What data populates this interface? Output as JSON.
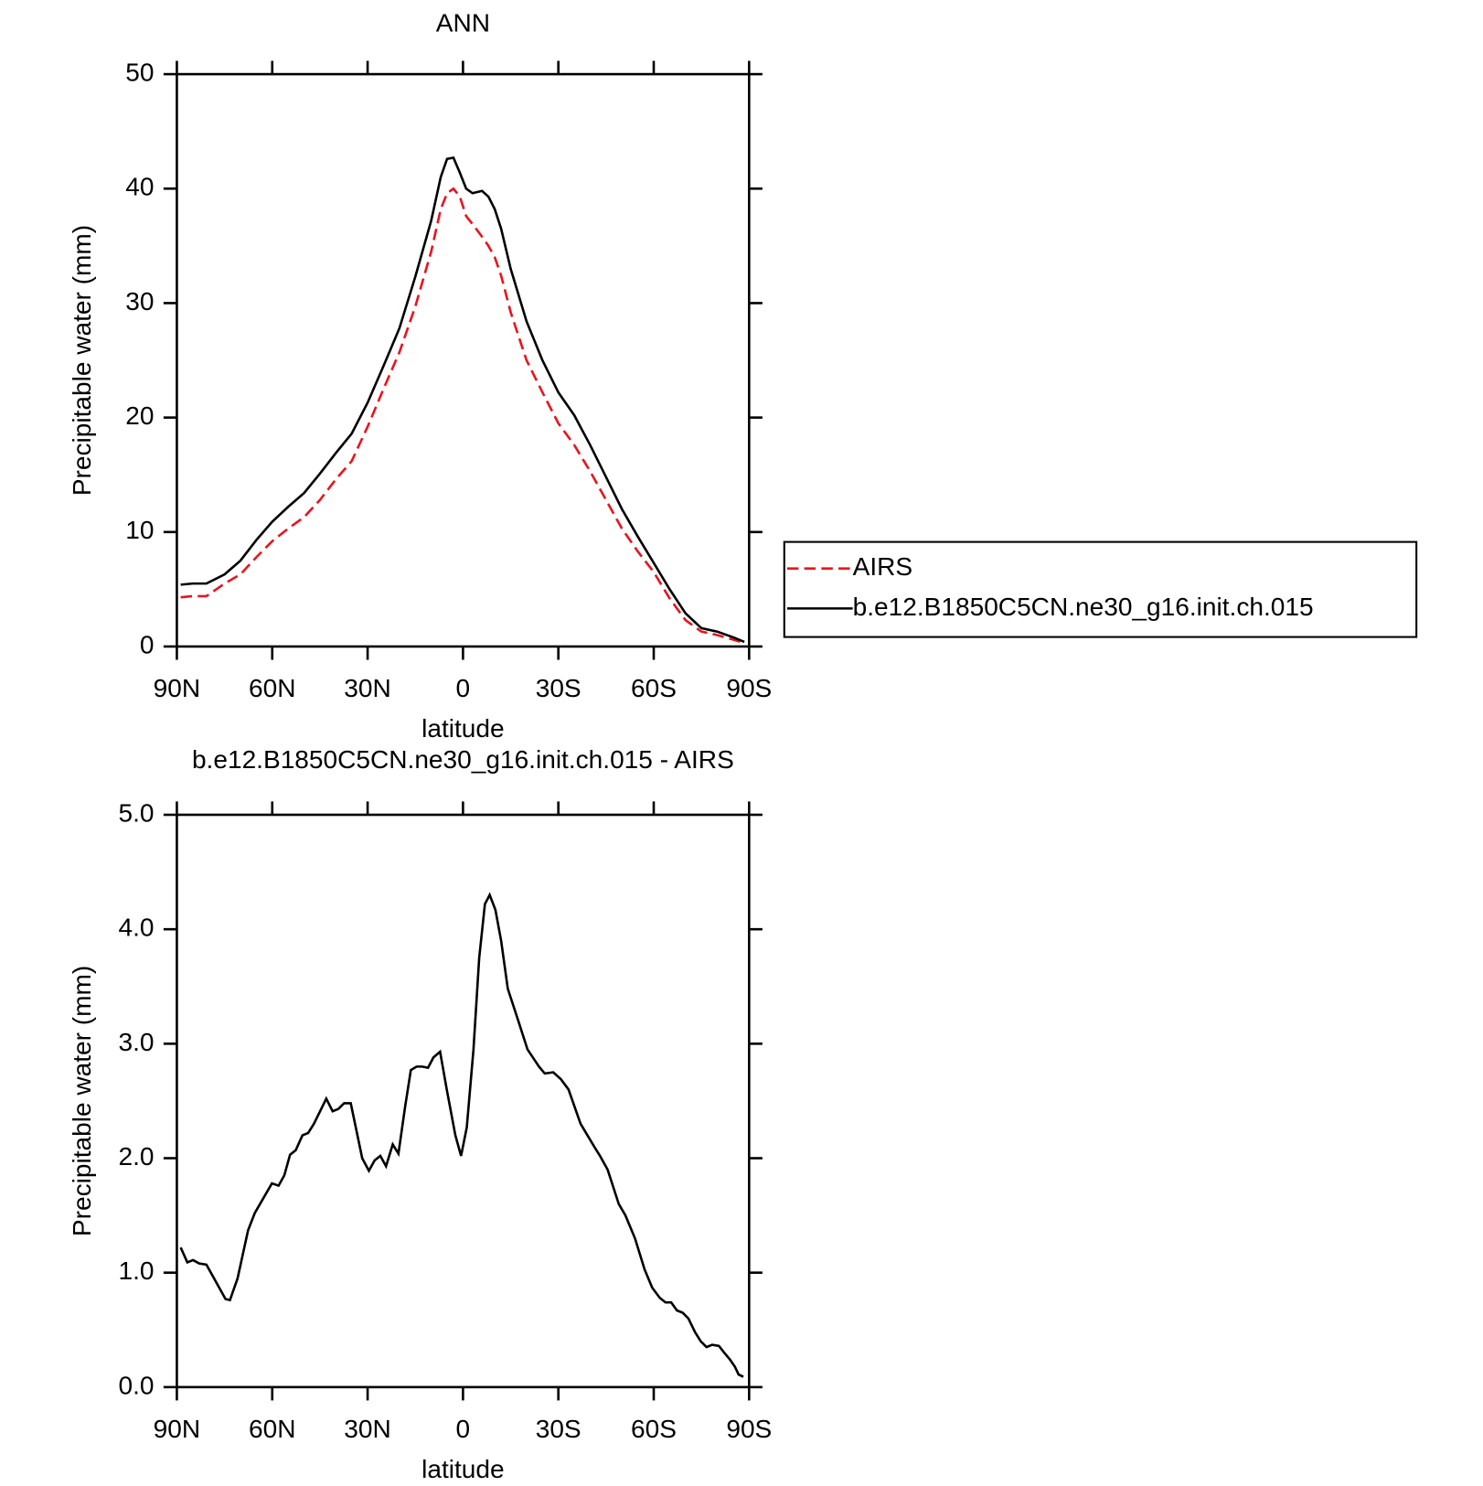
{
  "chart_data": [
    {
      "type": "line",
      "title": "ANN",
      "xlabel": "latitude",
      "ylabel": "Precipitable water (mm)",
      "x": [
        88.8,
        85,
        80.7,
        75,
        70,
        65,
        60,
        55,
        50,
        45,
        40,
        35,
        30,
        25,
        20,
        15,
        10,
        7,
        5,
        3,
        1,
        -1,
        -3,
        -6,
        -8,
        -10,
        -12,
        -15,
        -20,
        -25,
        -30,
        -35,
        -40,
        -45,
        -50,
        -55,
        -60,
        -65,
        -70,
        -75,
        -80,
        -85,
        -88.5
      ],
      "series": [
        {
          "name": "AIRS",
          "color": "#e8141e",
          "linestyle": "dashed",
          "values": [
            4.3,
            4.4,
            4.4,
            5.5,
            6.3,
            7.8,
            9.2,
            10.3,
            11.3,
            12.8,
            14.6,
            16.2,
            19.2,
            22.5,
            25.7,
            29.7,
            34.5,
            38.2,
            39.6,
            40.0,
            39.3,
            37.6,
            36.9,
            35.8,
            35.0,
            34.0,
            32.4,
            29.2,
            25.0,
            22.2,
            19.5,
            17.6,
            15.3,
            12.8,
            10.3,
            8.3,
            6.5,
            4.2,
            2.3,
            1.3,
            1.0,
            0.6,
            0.3
          ]
        },
        {
          "name": "b.e12.B1850C5CN.ne30_g16.init.ch.015",
          "color": "#000000",
          "linestyle": "solid",
          "values": [
            5.4,
            5.5,
            5.5,
            6.3,
            7.5,
            9.3,
            10.9,
            12.2,
            13.4,
            15.1,
            16.9,
            18.6,
            21.3,
            24.5,
            27.8,
            32.3,
            37.2,
            41.0,
            42.6,
            42.7,
            41.4,
            40.0,
            39.6,
            39.8,
            39.3,
            38.2,
            36.5,
            33.0,
            28.4,
            25.0,
            22.2,
            20.2,
            17.6,
            14.8,
            12.0,
            9.6,
            7.3,
            5.0,
            2.9,
            1.6,
            1.3,
            0.8,
            0.4
          ]
        }
      ],
      "xlim": [
        90,
        -90
      ],
      "ylim": [
        0,
        50
      ],
      "xticks": [
        {
          "value": 90,
          "label": "90N"
        },
        {
          "value": 60,
          "label": "60N"
        },
        {
          "value": 30,
          "label": "30N"
        },
        0,
        {
          "value": -30,
          "label": "30S"
        },
        {
          "value": -60,
          "label": "60S"
        },
        {
          "value": -90,
          "label": "90S"
        }
      ],
      "yticks": [
        0,
        10,
        20,
        30,
        40,
        50
      ],
      "legend": "right"
    },
    {
      "type": "line",
      "title": "b.e12.B1850C5CN.ne30_g16.init.ch.015 - AIRS",
      "xlabel": "latitude",
      "ylabel": "Precipitable water (mm)",
      "x": [
        88.8,
        86.7,
        84.9,
        83,
        80.7,
        74.7,
        73.3,
        70.9,
        67.6,
        65.5,
        60.1,
        58,
        56.2,
        54.4,
        52.6,
        50.5,
        48.7,
        46.9,
        43,
        41,
        39.2,
        37.4,
        35.3,
        31.7,
        29.6,
        27.8,
        26,
        24.2,
        22.1,
        20.3,
        18.2,
        16.4,
        14.6,
        12.8,
        11,
        9.3,
        7.2,
        5.1,
        2.4,
        0.6,
        -1.2,
        -3.3,
        -5.1,
        -6.9,
        -8.4,
        -10.2,
        -12,
        -14.1,
        -17.4,
        -20.3,
        -23.9,
        -25.7,
        -28.4,
        -30.8,
        -33.2,
        -37,
        -41.3,
        -43.1,
        -45.5,
        -49,
        -51.1,
        -54.1,
        -57.1,
        -59.5,
        -61.9,
        -63.7,
        -65.5,
        -67.3,
        -69.1,
        -70.9,
        -73,
        -74.8,
        -76.6,
        -78.4,
        -80.5,
        -82.2,
        -84,
        -85.5,
        -86.7,
        -88.2
      ],
      "series": [
        {
          "name": "b.e12.B1850C5CN.ne30_g16.init.ch.015 - AIRS",
          "color": "#000000",
          "linestyle": "solid",
          "values": [
            1.22,
            1.09,
            1.11,
            1.08,
            1.07,
            0.77,
            0.76,
            0.95,
            1.37,
            1.52,
            1.78,
            1.76,
            1.85,
            2.03,
            2.07,
            2.2,
            2.22,
            2.3,
            2.52,
            2.41,
            2.43,
            2.48,
            2.48,
            2.0,
            1.89,
            1.98,
            2.02,
            1.93,
            2.12,
            2.04,
            2.45,
            2.77,
            2.8,
            2.8,
            2.79,
            2.88,
            2.93,
            2.6,
            2.2,
            2.02,
            2.27,
            2.95,
            3.75,
            4.22,
            4.3,
            4.17,
            3.9,
            3.48,
            3.2,
            2.95,
            2.8,
            2.74,
            2.75,
            2.69,
            2.6,
            2.3,
            2.1,
            2.02,
            1.9,
            1.6,
            1.5,
            1.3,
            1.03,
            0.87,
            0.78,
            0.74,
            0.74,
            0.67,
            0.65,
            0.6,
            0.48,
            0.4,
            0.35,
            0.37,
            0.36,
            0.3,
            0.24,
            0.18,
            0.11,
            0.09
          ]
        }
      ],
      "xlim": [
        90,
        -90
      ],
      "ylim": [
        0,
        5
      ],
      "xticks": [
        {
          "value": 90,
          "label": "90N"
        },
        {
          "value": 60,
          "label": "60N"
        },
        {
          "value": 30,
          "label": "30N"
        },
        0,
        {
          "value": -30,
          "label": "30S"
        },
        {
          "value": -60,
          "label": "60S"
        },
        {
          "value": -90,
          "label": "90S"
        }
      ],
      "yticks": [
        {
          "value": 0,
          "label": "0.0"
        },
        {
          "value": 1,
          "label": "1.0"
        },
        {
          "value": 2,
          "label": "2.0"
        },
        {
          "value": 3,
          "label": "3.0"
        },
        {
          "value": 4,
          "label": "4.0"
        },
        {
          "value": 5,
          "label": "5.0"
        }
      ]
    }
  ]
}
